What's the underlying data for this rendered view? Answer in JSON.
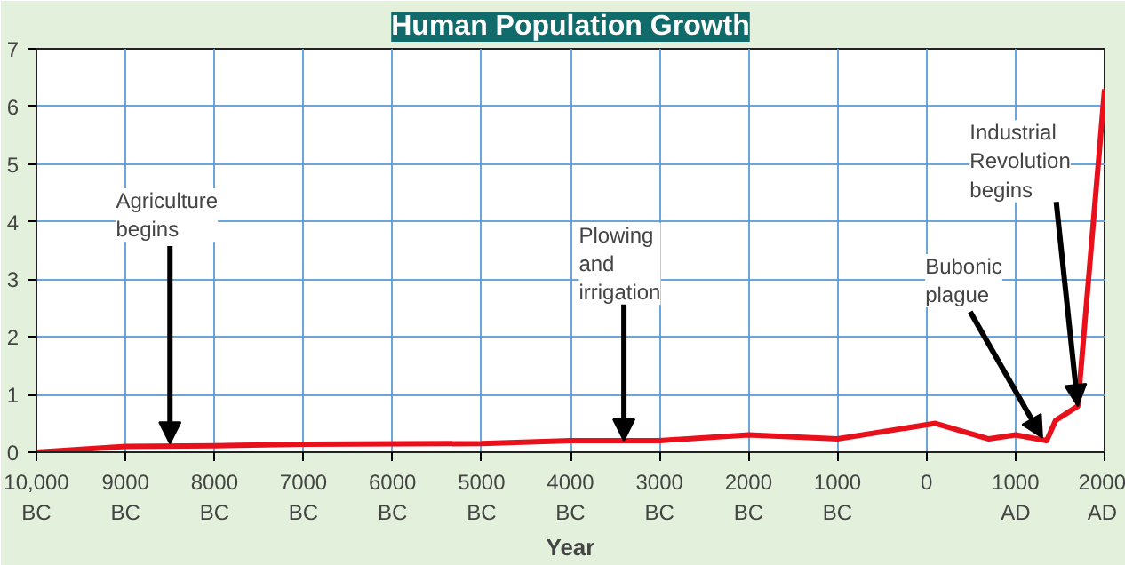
{
  "chart_data": {
    "type": "line",
    "title": "Human Population Growth",
    "xlabel": "Year",
    "x": [
      -10000,
      -9000,
      -8000,
      -7000,
      -5000,
      -4000,
      -3000,
      -2000,
      -1000,
      100,
      700,
      1000,
      1350,
      1450,
      1700,
      2000
    ],
    "series": [
      {
        "color": "#e8101a",
        "values": [
          0,
          0.1,
          0.11,
          0.14,
          0.15,
          0.2,
          0.2,
          0.3,
          0.23,
          0.5,
          0.23,
          0.3,
          0.2,
          0.55,
          0.8,
          6.3
        ]
      }
    ],
    "xlim": [
      -10000,
      2000
    ],
    "xticks": [
      {
        "value": -10000,
        "label": "10,000\nBC"
      },
      {
        "value": -9000,
        "label": "9000\nBC"
      },
      {
        "value": -8000,
        "label": "8000\nBC"
      },
      {
        "value": -7000,
        "label": "7000\nBC"
      },
      {
        "value": -6000,
        "label": "6000\nBC"
      },
      {
        "value": -5000,
        "label": "5000\nBC"
      },
      {
        "value": -4000,
        "label": "4000\nBC"
      },
      {
        "value": -3000,
        "label": "3000\nBC"
      },
      {
        "value": -2000,
        "label": "2000\nBC"
      },
      {
        "value": -1000,
        "label": "1000\nBC"
      },
      0,
      {
        "value": 1000,
        "label": "1000\nAD"
      },
      {
        "value": 2000,
        "label": "2000\nAD"
      }
    ],
    "ylim": [
      0,
      7
    ],
    "yticks": [
      0,
      1,
      2,
      3,
      4,
      5,
      6,
      7
    ],
    "grid": true,
    "marker": "none",
    "line_style": "solid",
    "annotations": [
      {
        "text": "Agriculture\nbegins",
        "x": -8500,
        "y": 0.15
      },
      {
        "text": "Plowing\nand\nirrigation",
        "x": -3400,
        "y": 0.2
      },
      {
        "text": "Bubonic\nplague",
        "x": 1300,
        "y": 0.25
      },
      {
        "text": "Industrial\nRevolution\nbegins",
        "x": 1700,
        "y": 0.8
      }
    ]
  }
}
